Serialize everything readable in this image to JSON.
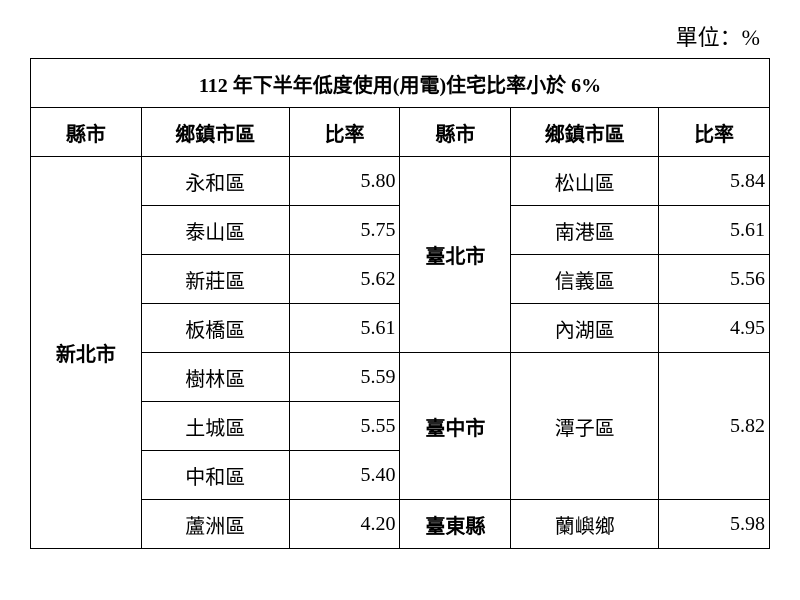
{
  "unit_label": "單位：%",
  "table": {
    "title": "112 年下半年低度使用(用電)住宅比率小於 6%",
    "headers": [
      "縣市",
      "鄉鎮市區",
      "比率",
      "縣市",
      "鄉鎮市區",
      "比率"
    ],
    "left_city": "新北市",
    "left_rows": [
      {
        "district": "永和區",
        "rate": "5.80"
      },
      {
        "district": "泰山區",
        "rate": "5.75"
      },
      {
        "district": "新莊區",
        "rate": "5.62"
      },
      {
        "district": "板橋區",
        "rate": "5.61"
      },
      {
        "district": "樹林區",
        "rate": "5.59"
      },
      {
        "district": "土城區",
        "rate": "5.55"
      },
      {
        "district": "中和區",
        "rate": "5.40"
      },
      {
        "district": "蘆洲區",
        "rate": "4.20"
      }
    ],
    "right_groups": [
      {
        "city": "臺北市",
        "rowspan": 4,
        "rows": [
          {
            "district": "松山區",
            "rate": "5.84"
          },
          {
            "district": "南港區",
            "rate": "5.61"
          },
          {
            "district": "信義區",
            "rate": "5.56"
          },
          {
            "district": "內湖區",
            "rate": "4.95"
          }
        ]
      },
      {
        "city": "臺中市",
        "rowspan": 3,
        "rows": [
          {
            "district": "潭子區",
            "rate": "5.82"
          }
        ],
        "district_rowspan": 3
      },
      {
        "city": "臺東縣",
        "rowspan": 1,
        "rows": [
          {
            "district": "蘭嶼鄉",
            "rate": "5.98"
          }
        ]
      }
    ],
    "style": {
      "border_color": "#000000",
      "background_color": "#ffffff",
      "title_fontsize": 20,
      "header_fontsize": 20,
      "body_fontsize": 20,
      "unit_fontsize": 22,
      "font_family_header": "PMingLiU, serif",
      "font_family_district": "DFKai-SB, KaiTi, serif",
      "font_family_rate": "Times New Roman, serif"
    }
  }
}
